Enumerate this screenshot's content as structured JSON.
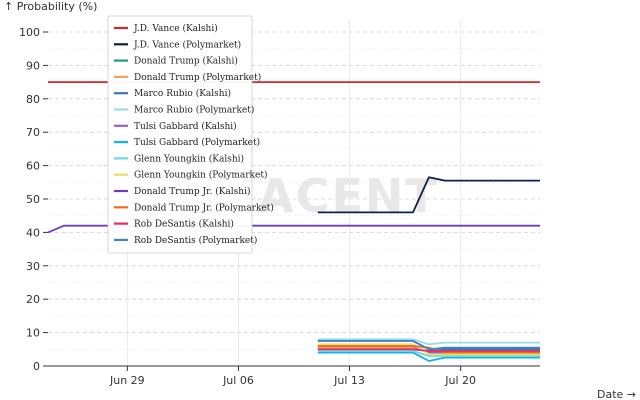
{
  "chart_data": {
    "type": "line",
    "ylabel": "↑ Probability (%)",
    "xlabel": "Date →",
    "watermark": "ADJACENT",
    "ylim": [
      0,
      100
    ],
    "yticks": [
      0,
      10,
      20,
      30,
      40,
      50,
      60,
      70,
      80,
      90,
      100
    ],
    "xlim": [
      "2025-06-24",
      "2025-07-25"
    ],
    "xticks": [
      {
        "date": "2025-06-29",
        "label": "Jun 29"
      },
      {
        "date": "2025-07-06",
        "label": "Jul 06"
      },
      {
        "date": "2025-07-13",
        "label": "Jul 13"
      },
      {
        "date": "2025-07-20",
        "label": "Jul 20"
      }
    ],
    "grid": true,
    "legend_position": "top-left",
    "series": [
      {
        "name": "J.D. Vance (Kalshi)",
        "color": "#d62728",
        "points": [
          [
            "2025-06-24",
            85
          ],
          [
            "2025-07-25",
            85
          ]
        ]
      },
      {
        "name": "J.D. Vance (Polymarket)",
        "color": "#0d2147",
        "points": [
          [
            "2025-07-11",
            46
          ],
          [
            "2025-07-17",
            46
          ],
          [
            "2025-07-18",
            56.5
          ],
          [
            "2025-07-19",
            55.5
          ],
          [
            "2025-07-25",
            55.5
          ]
        ]
      },
      {
        "name": "Donald Trump (Kalshi)",
        "color": "#1a9e77",
        "points": [
          [
            "2025-07-11",
            5
          ],
          [
            "2025-07-17",
            5
          ],
          [
            "2025-07-18",
            4.5
          ],
          [
            "2025-07-25",
            4.5
          ]
        ]
      },
      {
        "name": "Donald Trump (Polymarket)",
        "color": "#f4a460",
        "points": [
          [
            "2025-07-11",
            5.5
          ],
          [
            "2025-07-17",
            5.5
          ],
          [
            "2025-07-18",
            4
          ],
          [
            "2025-07-25",
            4.5
          ]
        ]
      },
      {
        "name": "Marco Rubio (Kalshi)",
        "color": "#3b76af",
        "points": [
          [
            "2025-07-11",
            7.5
          ],
          [
            "2025-07-17",
            7.5
          ],
          [
            "2025-07-18",
            5
          ],
          [
            "2025-07-25",
            5
          ]
        ]
      },
      {
        "name": "Marco Rubio (Polymarket)",
        "color": "#9ed9ea",
        "points": [
          [
            "2025-07-11",
            8
          ],
          [
            "2025-07-17",
            8
          ],
          [
            "2025-07-18",
            6.5
          ],
          [
            "2025-07-19",
            7
          ],
          [
            "2025-07-20",
            7
          ],
          [
            "2025-07-25",
            7
          ]
        ]
      },
      {
        "name": "Tulsi Gabbard (Kalshi)",
        "color": "#a05ad6",
        "points": [
          [
            "2025-07-11",
            6
          ],
          [
            "2025-07-17",
            6
          ],
          [
            "2025-07-18",
            4
          ],
          [
            "2025-07-25",
            4
          ]
        ]
      },
      {
        "name": "Tulsi Gabbard (Polymarket)",
        "color": "#12b3e6",
        "points": [
          [
            "2025-07-11",
            4
          ],
          [
            "2025-07-17",
            4
          ],
          [
            "2025-07-18",
            1.5
          ],
          [
            "2025-07-19",
            2.5
          ],
          [
            "2025-07-25",
            2.5
          ]
        ]
      },
      {
        "name": "Glenn Youngkin (Kalshi)",
        "color": "#6fd6e0",
        "points": [
          [
            "2025-07-11",
            4.5
          ],
          [
            "2025-07-17",
            4.5
          ],
          [
            "2025-07-18",
            3
          ],
          [
            "2025-07-25",
            3
          ]
        ]
      },
      {
        "name": "Glenn Youngkin (Polymarket)",
        "color": "#e8e15a",
        "points": [
          [
            "2025-07-11",
            6.5
          ],
          [
            "2025-07-17",
            6.5
          ],
          [
            "2025-07-18",
            3.5
          ],
          [
            "2025-07-25",
            3.5
          ]
        ]
      },
      {
        "name": "Donald Trump Jr. (Kalshi)",
        "color": "#6a3dc4",
        "points": [
          [
            "2025-06-24",
            40
          ],
          [
            "2025-06-25",
            42
          ],
          [
            "2025-07-25",
            42
          ]
        ]
      },
      {
        "name": "Donald Trump Jr. (Polymarket)",
        "color": "#f46a1b",
        "points": [
          [
            "2025-07-11",
            6
          ],
          [
            "2025-07-17",
            6
          ],
          [
            "2025-07-18",
            5.5
          ],
          [
            "2025-07-19",
            4
          ],
          [
            "2025-07-25",
            4
          ]
        ]
      },
      {
        "name": "Rob DeSantis (Kalshi)",
        "color": "#e0306a",
        "points": [
          [
            "2025-07-11",
            5
          ],
          [
            "2025-07-17",
            5
          ],
          [
            "2025-07-18",
            4.5
          ],
          [
            "2025-07-25",
            4.5
          ]
        ]
      },
      {
        "name": "Rob DeSantis (Polymarket)",
        "color": "#3a86c8",
        "points": [
          [
            "2025-07-11",
            7.5
          ],
          [
            "2025-07-17",
            7.5
          ],
          [
            "2025-07-18",
            5
          ],
          [
            "2025-07-19",
            5.5
          ],
          [
            "2025-07-25",
            5.5
          ]
        ]
      }
    ]
  }
}
